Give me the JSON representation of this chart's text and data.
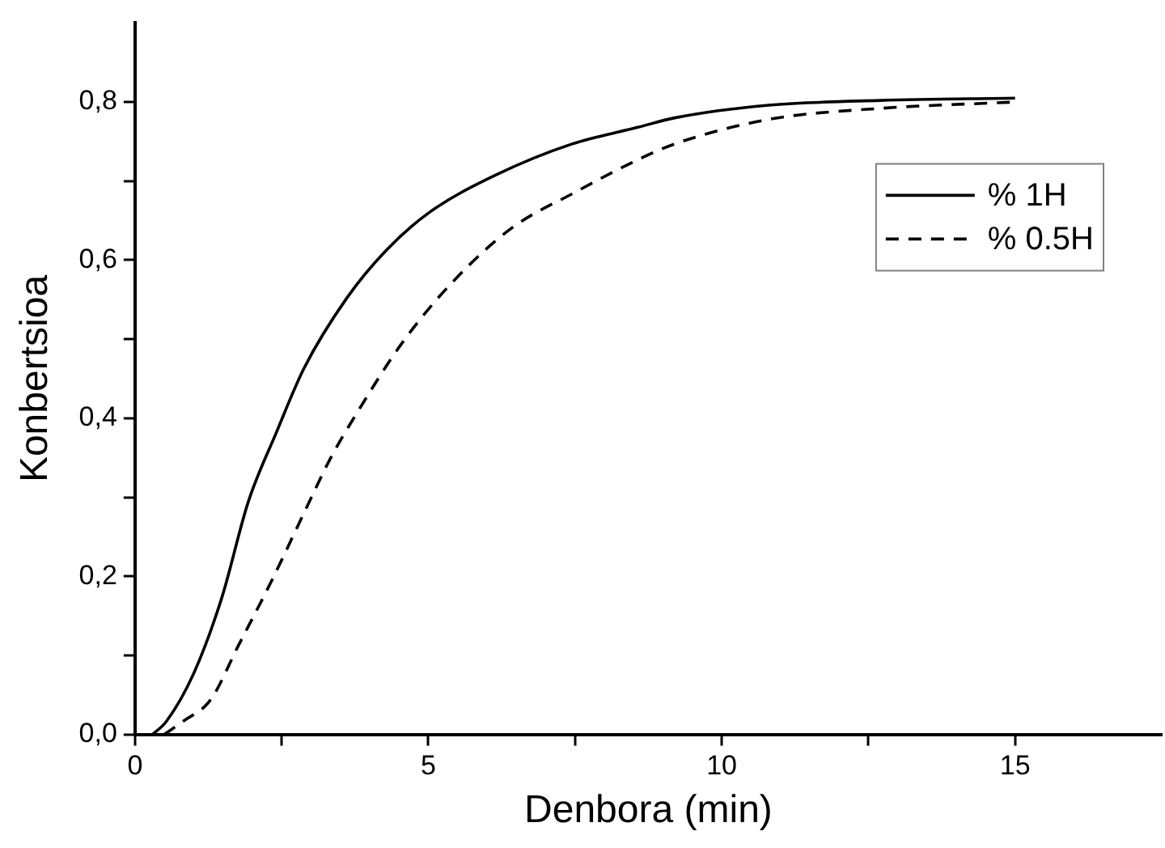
{
  "chart_data": {
    "type": "line",
    "xlabel": "Denbora (min)",
    "ylabel": "Konbertsioa",
    "xlim": [
      0,
      17.5
    ],
    "ylim": [
      0,
      0.9
    ],
    "xticks": [
      0,
      {
        "value": 2.5,
        "label": null
      },
      5,
      {
        "value": 7.5,
        "label": null
      },
      10,
      {
        "value": 12.5,
        "label": null
      },
      15
    ],
    "yticks": [
      {
        "value": 0,
        "label": "0,0"
      },
      {
        "value": 0.1,
        "label": null
      },
      {
        "value": 0.2,
        "label": "0,2"
      },
      {
        "value": 0.3,
        "label": null
      },
      {
        "value": 0.4,
        "label": "0,4"
      },
      {
        "value": 0.5,
        "label": null
      },
      {
        "value": 0.6,
        "label": "0,6"
      },
      {
        "value": 0.7,
        "label": null
      },
      {
        "value": 0.8,
        "label": "0,8"
      }
    ],
    "grid": false,
    "legend": "top right",
    "marker": "none",
    "series": [
      {
        "name": "% 1H",
        "color": "#000000",
        "line_style": "solid",
        "x": [
          0.3,
          0.53,
          1.0,
          1.48,
          1.93,
          2.41,
          2.88,
          3.61,
          4.29,
          5.01,
          6.13,
          7.45,
          8.57,
          9.2,
          10.8,
          12.7,
          15
        ],
        "values": [
          0,
          0.016,
          0.077,
          0.173,
          0.294,
          0.382,
          0.463,
          0.552,
          0.613,
          0.66,
          0.707,
          0.747,
          0.768,
          0.78,
          0.796,
          0.802,
          0.805
        ]
      },
      {
        "name": "% 0.5H",
        "color": "#000000",
        "line_style": "dashed",
        "x": [
          0.5,
          0.81,
          1.29,
          1.76,
          2.32,
          2.88,
          3.33,
          3.81,
          4.57,
          5.41,
          6.41,
          7.53,
          8.57,
          9.2,
          10.8,
          12.7,
          15
        ],
        "values": [
          0,
          0.016,
          0.044,
          0.112,
          0.193,
          0.28,
          0.349,
          0.41,
          0.497,
          0.572,
          0.64,
          0.687,
          0.727,
          0.747,
          0.778,
          0.792,
          0.8
        ]
      }
    ]
  }
}
